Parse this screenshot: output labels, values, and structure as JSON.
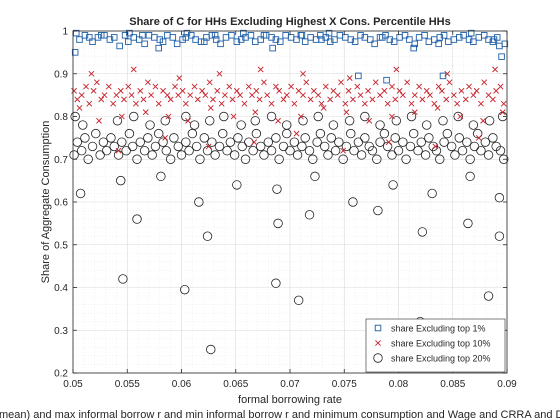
{
  "chart_data": {
    "type": "scatter",
    "title": "Share of C for HHs Excluding Highest X Cons. Percentile HHs",
    "xlabel": "formal borrowing rate",
    "ylabel": "Share of Aggregate Consumption",
    "footer": "mean) and max informal borrow r and min informal borrow r and minimum consumption and Wage and CRRA and D",
    "xlim": [
      0.05,
      0.09
    ],
    "ylim": [
      0.2,
      1.0
    ],
    "xticks": [
      "0.05",
      "0.055",
      "0.06",
      "0.065",
      "0.07",
      "0.075",
      "0.08",
      "0.085",
      "0.09"
    ],
    "yticks": [
      "0.2",
      "0.3",
      "0.4",
      "0.5",
      "0.6",
      "0.7",
      "0.8",
      "0.9",
      "1"
    ],
    "xtick_values": [
      0.05,
      0.055,
      0.06,
      0.065,
      0.07,
      0.075,
      0.08,
      0.085,
      0.09
    ],
    "ytick_values": [
      0.2,
      0.3,
      0.4,
      0.5,
      0.6,
      0.7,
      0.8,
      0.9,
      1.0
    ],
    "grid": true,
    "legend_position": "bottom-right",
    "series": [
      {
        "name": "share Excluding top 1%",
        "marker": "square",
        "color": "#1f5fa8",
        "x": [
          0.0502,
          0.0506,
          0.0511,
          0.0518,
          0.0523,
          0.0529,
          0.0534,
          0.0538,
          0.0543,
          0.0548,
          0.0551,
          0.0556,
          0.0561,
          0.0566,
          0.057,
          0.0575,
          0.058,
          0.0583,
          0.0587,
          0.0592,
          0.0596,
          0.0601,
          0.0604,
          0.0609,
          0.0613,
          0.0618,
          0.0623,
          0.0628,
          0.0632,
          0.0636,
          0.0641,
          0.0646,
          0.0651,
          0.0655,
          0.0659,
          0.0664,
          0.0668,
          0.0673,
          0.0678,
          0.0683,
          0.0687,
          0.0691,
          0.0696,
          0.0701,
          0.0706,
          0.071,
          0.0714,
          0.0719,
          0.0724,
          0.0728,
          0.0733,
          0.0737,
          0.0741,
          0.0746,
          0.0751,
          0.0756,
          0.076,
          0.0765,
          0.0769,
          0.0774,
          0.0778,
          0.0783,
          0.0788,
          0.0792,
          0.0796,
          0.0801,
          0.0806,
          0.081,
          0.0815,
          0.0819,
          0.0824,
          0.0828,
          0.0833,
          0.0838,
          0.0842,
          0.0846,
          0.0851,
          0.0856,
          0.086,
          0.0865,
          0.0869,
          0.0874,
          0.0879,
          0.0883,
          0.0887,
          0.0891,
          0.0895,
          0.0898,
          0.0503,
          0.0526,
          0.0552,
          0.0579,
          0.0605,
          0.0631,
          0.0657,
          0.0684,
          0.0711,
          0.0736,
          0.0763,
          0.0789,
          0.0814,
          0.0841,
          0.0867,
          0.0893,
          0.0515,
          0.0564,
          0.0621,
          0.0676,
          0.0729,
          0.0785,
          0.0837,
          0.0888
        ],
        "y": [
          0.95,
          0.98,
          0.99,
          0.975,
          0.985,
          0.99,
          0.98,
          0.985,
          0.965,
          0.99,
          0.975,
          0.985,
          0.98,
          0.97,
          0.99,
          0.985,
          0.98,
          0.975,
          0.99,
          0.985,
          0.97,
          0.98,
          0.985,
          0.99,
          0.98,
          0.975,
          0.985,
          0.99,
          0.98,
          0.97,
          0.985,
          0.99,
          0.975,
          0.98,
          0.985,
          0.99,
          0.975,
          0.98,
          0.99,
          0.985,
          0.98,
          0.975,
          0.99,
          0.985,
          0.98,
          0.99,
          0.975,
          0.985,
          0.98,
          0.99,
          0.985,
          0.975,
          0.98,
          0.99,
          0.985,
          0.98,
          0.975,
          0.99,
          0.985,
          0.98,
          0.97,
          0.985,
          0.99,
          0.98,
          0.975,
          0.985,
          0.99,
          0.98,
          0.97,
          0.985,
          0.99,
          0.975,
          0.98,
          0.985,
          0.99,
          0.975,
          0.98,
          0.985,
          0.99,
          0.98,
          0.975,
          0.985,
          0.99,
          0.98,
          0.975,
          0.985,
          0.94,
          0.97,
          0.995,
          0.99,
          0.995,
          0.96,
          0.995,
          0.99,
          0.995,
          0.96,
          0.99,
          0.995,
          0.895,
          0.885,
          0.96,
          0.895,
          0.995,
          0.965,
          0.985,
          0.99,
          0.975,
          0.99,
          0.98,
          0.985,
          0.97,
          0.98
        ]
      },
      {
        "name": "share Excluding top 10%",
        "marker": "cross",
        "color": "#c8202a",
        "x": [
          0.0501,
          0.0504,
          0.0508,
          0.0512,
          0.0515,
          0.0519,
          0.0522,
          0.0526,
          0.0529,
          0.0533,
          0.0537,
          0.054,
          0.0544,
          0.0547,
          0.0551,
          0.0554,
          0.0558,
          0.0562,
          0.0565,
          0.0569,
          0.0572,
          0.0576,
          0.0579,
          0.0583,
          0.0587,
          0.059,
          0.0594,
          0.0597,
          0.0601,
          0.0604,
          0.0608,
          0.0612,
          0.0615,
          0.0619,
          0.0622,
          0.0626,
          0.0629,
          0.0633,
          0.0637,
          0.064,
          0.0644,
          0.0647,
          0.0651,
          0.0654,
          0.0658,
          0.0662,
          0.0665,
          0.0669,
          0.0672,
          0.0676,
          0.0679,
          0.0683,
          0.0687,
          0.069,
          0.0694,
          0.0697,
          0.0701,
          0.0704,
          0.0708,
          0.0712,
          0.0715,
          0.0719,
          0.0722,
          0.0726,
          0.0729,
          0.0733,
          0.0737,
          0.074,
          0.0744,
          0.0747,
          0.0751,
          0.0754,
          0.0758,
          0.0762,
          0.0765,
          0.0769,
          0.0772,
          0.0776,
          0.0779,
          0.0783,
          0.0787,
          0.079,
          0.0794,
          0.0797,
          0.0801,
          0.0804,
          0.0808,
          0.0812,
          0.0815,
          0.0819,
          0.0822,
          0.0826,
          0.0829,
          0.0833,
          0.0837,
          0.084,
          0.0844,
          0.0847,
          0.0851,
          0.0854,
          0.0858,
          0.0862,
          0.0865,
          0.0869,
          0.0872,
          0.0876,
          0.0879,
          0.0883,
          0.0887,
          0.089,
          0.0894,
          0.0897,
          0.0506,
          0.0524,
          0.0545,
          0.0567,
          0.0588,
          0.0606,
          0.0627,
          0.0648,
          0.0668,
          0.0689,
          0.071,
          0.0731,
          0.0752,
          0.0773,
          0.0794,
          0.0815,
          0.0836,
          0.0857,
          0.0878,
          0.0896,
          0.0517,
          0.0556,
          0.0598,
          0.0635,
          0.0673,
          0.0712,
          0.0755,
          0.0798,
          0.0845,
          0.0889,
          0.0542,
          0.0585,
          0.0625,
          0.0667,
          0.0706,
          0.0749,
          0.0791,
          0.0834,
          0.0874
        ],
        "y": [
          0.86,
          0.84,
          0.85,
          0.87,
          0.83,
          0.86,
          0.88,
          0.84,
          0.85,
          0.87,
          0.83,
          0.85,
          0.86,
          0.84,
          0.87,
          0.85,
          0.83,
          0.86,
          0.84,
          0.88,
          0.85,
          0.87,
          0.83,
          0.86,
          0.85,
          0.84,
          0.87,
          0.85,
          0.86,
          0.83,
          0.85,
          0.87,
          0.84,
          0.86,
          0.85,
          0.88,
          0.84,
          0.86,
          0.83,
          0.85,
          0.87,
          0.84,
          0.86,
          0.85,
          0.83,
          0.87,
          0.85,
          0.86,
          0.84,
          0.88,
          0.85,
          0.83,
          0.87,
          0.86,
          0.84,
          0.85,
          0.87,
          0.83,
          0.86,
          0.85,
          0.88,
          0.84,
          0.86,
          0.85,
          0.83,
          0.87,
          0.84,
          0.86,
          0.85,
          0.88,
          0.83,
          0.86,
          0.84,
          0.87,
          0.85,
          0.83,
          0.86,
          0.84,
          0.88,
          0.85,
          0.86,
          0.83,
          0.87,
          0.84,
          0.86,
          0.85,
          0.88,
          0.83,
          0.85,
          0.87,
          0.84,
          0.86,
          0.85,
          0.83,
          0.87,
          0.86,
          0.84,
          0.88,
          0.85,
          0.83,
          0.86,
          0.84,
          0.87,
          0.85,
          0.86,
          0.83,
          0.88,
          0.85,
          0.84,
          0.86,
          0.87,
          0.83,
          0.82,
          0.79,
          0.8,
          0.81,
          0.8,
          0.79,
          0.82,
          0.8,
          0.81,
          0.79,
          0.8,
          0.82,
          0.81,
          0.79,
          0.8,
          0.81,
          0.82,
          0.8,
          0.79,
          0.81,
          0.9,
          0.91,
          0.89,
          0.9,
          0.91,
          0.9,
          0.89,
          0.91,
          0.9,
          0.91,
          0.72,
          0.75,
          0.73,
          0.74,
          0.76,
          0.72,
          0.74,
          0.73,
          0.75
        ]
      },
      {
        "name": "share Excluding top 20%",
        "marker": "circle",
        "color": "#222222",
        "x": [
          0.0501,
          0.0504,
          0.0508,
          0.0511,
          0.0514,
          0.0518,
          0.0521,
          0.0525,
          0.0528,
          0.0531,
          0.0535,
          0.0538,
          0.0542,
          0.0545,
          0.0549,
          0.0552,
          0.0555,
          0.0559,
          0.0562,
          0.0566,
          0.0569,
          0.0573,
          0.0576,
          0.0579,
          0.0583,
          0.0586,
          0.059,
          0.0593,
          0.0597,
          0.06,
          0.0604,
          0.0607,
          0.061,
          0.0614,
          0.0617,
          0.0621,
          0.0624,
          0.0628,
          0.0631,
          0.0635,
          0.0638,
          0.0642,
          0.0645,
          0.0649,
          0.0652,
          0.0656,
          0.0659,
          0.0662,
          0.0666,
          0.0669,
          0.0673,
          0.0676,
          0.068,
          0.0683,
          0.0687,
          0.069,
          0.0694,
          0.0697,
          0.07,
          0.0704,
          0.0707,
          0.0711,
          0.0714,
          0.0718,
          0.0721,
          0.0725,
          0.0728,
          0.0732,
          0.0735,
          0.0738,
          0.0742,
          0.0745,
          0.0749,
          0.0752,
          0.0756,
          0.0759,
          0.0763,
          0.0766,
          0.0769,
          0.0773,
          0.0776,
          0.078,
          0.0783,
          0.0787,
          0.079,
          0.0794,
          0.0797,
          0.08,
          0.0804,
          0.0807,
          0.0811,
          0.0814,
          0.0818,
          0.0821,
          0.0825,
          0.0828,
          0.0832,
          0.0835,
          0.0838,
          0.0842,
          0.0845,
          0.0849,
          0.0852,
          0.0856,
          0.0859,
          0.0863,
          0.0866,
          0.087,
          0.0873,
          0.0876,
          0.088,
          0.0883,
          0.0887,
          0.089,
          0.0894,
          0.0897,
          0.0502,
          0.0509,
          0.0541,
          0.0556,
          0.0571,
          0.0585,
          0.0604,
          0.0612,
          0.0626,
          0.0639,
          0.0655,
          0.0668,
          0.0683,
          0.0697,
          0.0712,
          0.0726,
          0.074,
          0.0755,
          0.0769,
          0.0783,
          0.0798,
          0.0812,
          0.0826,
          0.0841,
          0.0855,
          0.0869,
          0.0884,
          0.0896,
          0.0507,
          0.0544,
          0.0581,
          0.0616,
          0.0651,
          0.0688,
          0.0723,
          0.0758,
          0.0795,
          0.0831,
          0.0866,
          0.0893,
          0.0559,
          0.0624,
          0.0689,
          0.0718,
          0.0781,
          0.0822,
          0.0864,
          0.0546,
          0.0603,
          0.0627,
          0.0687,
          0.0708,
          0.078,
          0.082,
          0.0848,
          0.0862,
          0.0883,
          0.0893
        ],
        "y": [
          0.71,
          0.74,
          0.72,
          0.75,
          0.7,
          0.73,
          0.76,
          0.71,
          0.74,
          0.72,
          0.75,
          0.73,
          0.71,
          0.74,
          0.72,
          0.76,
          0.73,
          0.7,
          0.74,
          0.72,
          0.75,
          0.71,
          0.73,
          0.76,
          0.74,
          0.72,
          0.7,
          0.75,
          0.73,
          0.71,
          0.74,
          0.72,
          0.76,
          0.73,
          0.7,
          0.75,
          0.72,
          0.74,
          0.71,
          0.73,
          0.76,
          0.72,
          0.74,
          0.71,
          0.75,
          0.73,
          0.7,
          0.74,
          0.72,
          0.76,
          0.73,
          0.71,
          0.74,
          0.72,
          0.75,
          0.7,
          0.73,
          0.76,
          0.72,
          0.74,
          0.71,
          0.73,
          0.75,
          0.72,
          0.7,
          0.74,
          0.76,
          0.73,
          0.71,
          0.75,
          0.72,
          0.74,
          0.7,
          0.73,
          0.76,
          0.72,
          0.74,
          0.71,
          0.75,
          0.73,
          0.72,
          0.7,
          0.74,
          0.76,
          0.73,
          0.71,
          0.75,
          0.72,
          0.74,
          0.7,
          0.73,
          0.76,
          0.72,
          0.74,
          0.71,
          0.75,
          0.73,
          0.72,
          0.7,
          0.74,
          0.76,
          0.73,
          0.71,
          0.75,
          0.72,
          0.74,
          0.7,
          0.73,
          0.76,
          0.72,
          0.74,
          0.71,
          0.75,
          0.73,
          0.72,
          0.7,
          0.8,
          0.78,
          0.79,
          0.8,
          0.78,
          0.79,
          0.8,
          0.78,
          0.79,
          0.8,
          0.78,
          0.79,
          0.8,
          0.78,
          0.79,
          0.8,
          0.78,
          0.79,
          0.8,
          0.78,
          0.79,
          0.8,
          0.78,
          0.79,
          0.8,
          0.78,
          0.79,
          0.8,
          0.62,
          0.65,
          0.66,
          0.6,
          0.64,
          0.63,
          0.66,
          0.6,
          0.64,
          0.62,
          0.66,
          0.61,
          0.56,
          0.52,
          0.55,
          0.57,
          0.58,
          0.53,
          0.55,
          0.42,
          0.395,
          0.255,
          0.41,
          0.37,
          0.295,
          0.32,
          0.31,
          0.295,
          0.38,
          0.52
        ]
      }
    ]
  }
}
